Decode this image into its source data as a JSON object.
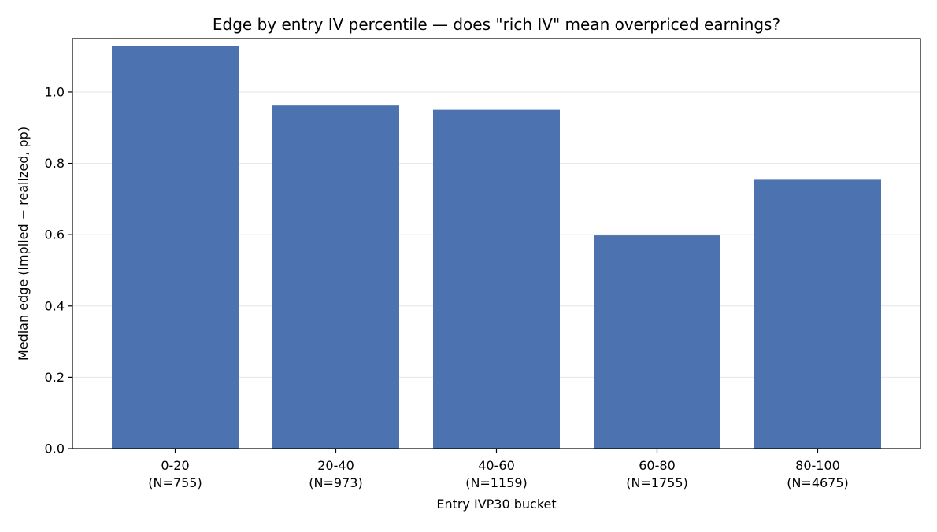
{
  "chart_data": {
    "type": "bar",
    "title": "Edge by entry IV percentile — does \"rich IV\" mean overpriced earnings?",
    "xlabel": "Entry IVP30 bucket",
    "ylabel": "Median edge (implied − realized, pp)",
    "categories": [
      "0-20",
      "20-40",
      "40-60",
      "60-80",
      "80-100"
    ],
    "category_counts": [
      "(N=755)",
      "(N=973)",
      "(N=1159)",
      "(N=1755)",
      "(N=4675)"
    ],
    "values": [
      1.128,
      0.962,
      0.95,
      0.598,
      0.754
    ],
    "ylim": [
      0.0,
      1.15
    ],
    "yticks": [
      0.0,
      0.2,
      0.4,
      0.6,
      0.8,
      1.0
    ],
    "ytick_labels": [
      "0.0",
      "0.2",
      "0.4",
      "0.6",
      "0.8",
      "1.0"
    ],
    "grid": "horizontal",
    "bar_color": "#4c72b0",
    "grid_color": "#e6e6e6",
    "axis_color": "#000000"
  }
}
